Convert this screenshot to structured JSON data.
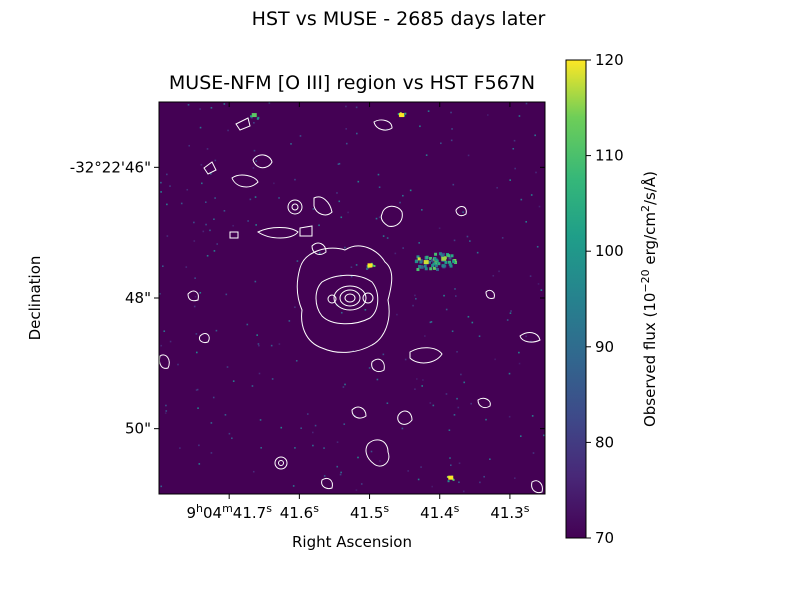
{
  "figure": {
    "suptitle": "HST vs MUSE - 2685 days later"
  },
  "chart_data": {
    "type": "heatmap",
    "title": "MUSE-NFM [O III] region vs HST F567N",
    "xlabel": "Right Ascension",
    "ylabel": "Declination",
    "x_ticks": [
      {
        "label": "9h04m41.7s",
        "value": 41.7
      },
      {
        "label": "41.6s",
        "value": 41.6
      },
      {
        "label": "41.5s",
        "value": 41.5
      },
      {
        "label": "41.4s",
        "value": 41.4
      },
      {
        "label": "41.3s",
        "value": 41.3
      }
    ],
    "x_range_sec": [
      41.8,
      41.25
    ],
    "y_ticks": [
      {
        "label": "-32°22'46\"",
        "value": 46
      },
      {
        "label": "48\"",
        "value": 48
      },
      {
        "label": "50\"",
        "value": 50
      }
    ],
    "y_range_arcsec": [
      45.0,
      51.0
    ],
    "colorbar": {
      "label": "Observed flux (10^-20 erg/cm^2/s/Å)",
      "min": 70,
      "max": 120,
      "ticks": [
        70,
        80,
        90,
        100,
        110,
        120
      ],
      "colormap": "viridis"
    },
    "background_color": "#440154",
    "contour_color": "#ffffff",
    "bright_sources": [
      {
        "ra": 41.5,
        "dec": 47.5,
        "flux": 120
      },
      {
        "ra": 41.42,
        "dec": 47.45,
        "flux": 118
      },
      {
        "ra": 41.395,
        "dec": 47.4,
        "flux": 116
      },
      {
        "ra": 41.455,
        "dec": 45.2,
        "flux": 120
      },
      {
        "ra": 41.665,
        "dec": 45.2,
        "flux": 112
      },
      {
        "ra": 41.385,
        "dec": 50.75,
        "flux": 120
      }
    ]
  }
}
